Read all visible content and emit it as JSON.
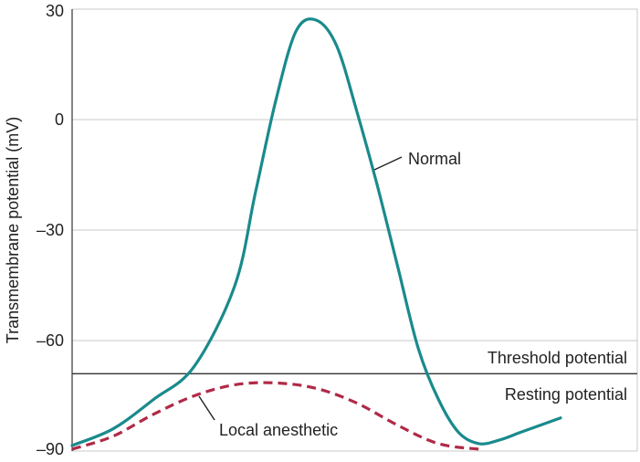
{
  "chart_data": {
    "type": "line",
    "title": "",
    "xlabel": "",
    "ylabel": "Transmembrane potential (mV)",
    "ylim": [
      -90,
      30
    ],
    "yticks": [
      30,
      0,
      -30,
      -60,
      -90
    ],
    "ytick_labels": [
      "30",
      "0",
      "–30",
      "–60",
      "–90"
    ],
    "grid": true,
    "threshold": {
      "value": -69,
      "label": "Threshold potential"
    },
    "annotations": [
      {
        "text": "Resting potential"
      }
    ],
    "series": [
      {
        "name": "Normal",
        "color": "#1a8a8c",
        "style": "solid",
        "x": [
          0,
          10,
          20,
          30,
          40,
          45,
          50,
          55,
          60,
          65,
          70,
          75,
          80,
          85,
          90,
          95,
          100,
          105,
          110,
          115,
          120
        ],
        "y": [
          -88.5,
          -84,
          -76,
          -67,
          -45,
          -20,
          5,
          24,
          27,
          20,
          2,
          -18,
          -40,
          -62,
          -76,
          -85,
          -88,
          -87,
          -85,
          -83,
          -81
        ]
      },
      {
        "name": "Local anesthetic",
        "color": "#b02a48",
        "style": "dashed",
        "x": [
          0,
          10,
          20,
          30,
          40,
          50,
          60,
          70,
          80,
          90,
          100
        ],
        "y": [
          -89.5,
          -86,
          -80,
          -75,
          -72,
          -71.5,
          -73,
          -77,
          -83,
          -88,
          -89.5
        ]
      }
    ]
  }
}
